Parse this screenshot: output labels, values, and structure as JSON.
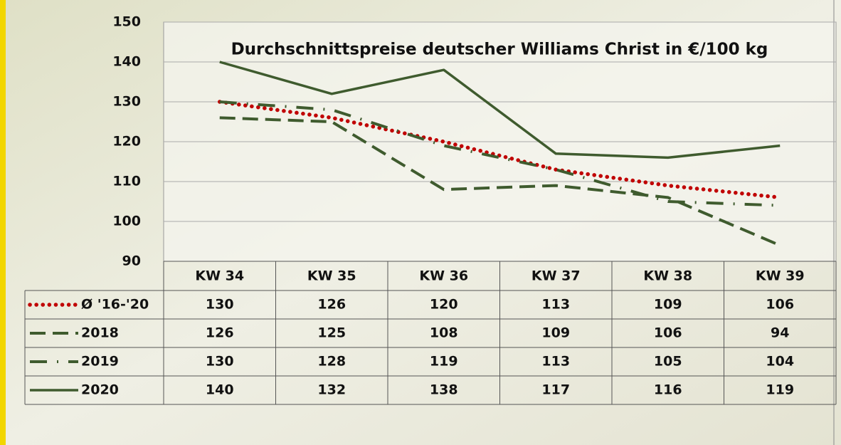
{
  "chart_data": {
    "type": "line",
    "title": "Durchschnittspreise deutscher Williams Christ in €/100 kg",
    "categories": [
      "KW 34",
      "KW 35",
      "KW 36",
      "KW 37",
      "KW 38",
      "KW 39"
    ],
    "ylim": [
      90,
      150
    ],
    "yticks": [
      90,
      100,
      110,
      120,
      130,
      140,
      150
    ],
    "grid": true,
    "series": [
      {
        "name": "Ø '16-'20",
        "color": "#c00000",
        "style": "dotted",
        "values": [
          130,
          126,
          120,
          113,
          109,
          106
        ]
      },
      {
        "name": "2018",
        "color": "#3f5b2e",
        "style": "dashed",
        "values": [
          126,
          125,
          108,
          109,
          106,
          94
        ]
      },
      {
        "name": "2019",
        "color": "#3f5b2e",
        "style": "dash-dot",
        "values": [
          130,
          128,
          119,
          113,
          105,
          104
        ]
      },
      {
        "name": "2020",
        "color": "#3f5b2e",
        "style": "solid",
        "values": [
          140,
          132,
          138,
          117,
          116,
          119
        ]
      }
    ]
  }
}
